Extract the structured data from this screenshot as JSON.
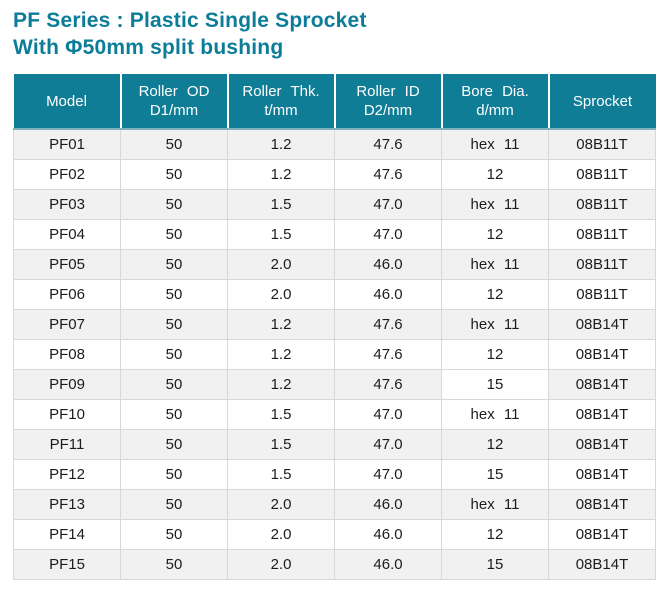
{
  "title": {
    "line1": "PF Series : Plastic Single Sprocket",
    "line2": "With Φ50mm split bushing"
  },
  "colors": {
    "title_teal": "#0b7d99",
    "teal_header": "#0e7d95",
    "header_text": "#ffffff",
    "header_divider": "#ffffff",
    "header_underline": "#7fb0bc",
    "row_alt": "#f1f1f1",
    "row_white": "#ffffff",
    "border": "#d8d8d8",
    "body_text": "#1c1c1c"
  },
  "table": {
    "columns": [
      {
        "line1": "Model",
        "line2": ""
      },
      {
        "line1": "Roller OD",
        "line2": "D1/mm"
      },
      {
        "line1": "Roller Thk.",
        "line2": "t/mm"
      },
      {
        "line1": "Roller ID",
        "line2": "D2/mm"
      },
      {
        "line1": "Bore Dia.",
        "line2": "d/mm"
      },
      {
        "line1": "Sprocket",
        "line2": ""
      }
    ],
    "rows": [
      [
        "PF01",
        "50",
        "1.2",
        "47.6",
        "hex 11",
        "08B11T"
      ],
      [
        "PF02",
        "50",
        "1.2",
        "47.6",
        "12",
        "08B11T"
      ],
      [
        "PF03",
        "50",
        "1.5",
        "47.0",
        "hex 11",
        "08B11T"
      ],
      [
        "PF04",
        "50",
        "1.5",
        "47.0",
        "12",
        "08B11T"
      ],
      [
        "PF05",
        "50",
        "2.0",
        "46.0",
        "hex 11",
        "08B11T"
      ],
      [
        "PF06",
        "50",
        "2.0",
        "46.0",
        "12",
        "08B11T"
      ],
      [
        "PF07",
        "50",
        "1.2",
        "47.6",
        "hex 11",
        "08B14T"
      ],
      [
        "PF08",
        "50",
        "1.2",
        "47.6",
        "12",
        "08B14T"
      ],
      [
        "PF09",
        "50",
        "1.2",
        "47.6",
        "15",
        "08B14T"
      ],
      [
        "PF10",
        "50",
        "1.5",
        "47.0",
        "hex 11",
        "08B14T"
      ],
      [
        "PF11",
        "50",
        "1.5",
        "47.0",
        "12",
        "08B14T"
      ],
      [
        "PF12",
        "50",
        "1.5",
        "47.0",
        "15",
        "08B14T"
      ],
      [
        "PF13",
        "50",
        "2.0",
        "46.0",
        "hex 11",
        "08B14T"
      ],
      [
        "PF14",
        "50",
        "2.0",
        "46.0",
        "12",
        "08B14T"
      ],
      [
        "PF15",
        "50",
        "2.0",
        "46.0",
        "15",
        "08B14T"
      ]
    ],
    "highlight_cell": {
      "row_index": 8,
      "col_index": 4,
      "background": "#ffffff"
    }
  }
}
